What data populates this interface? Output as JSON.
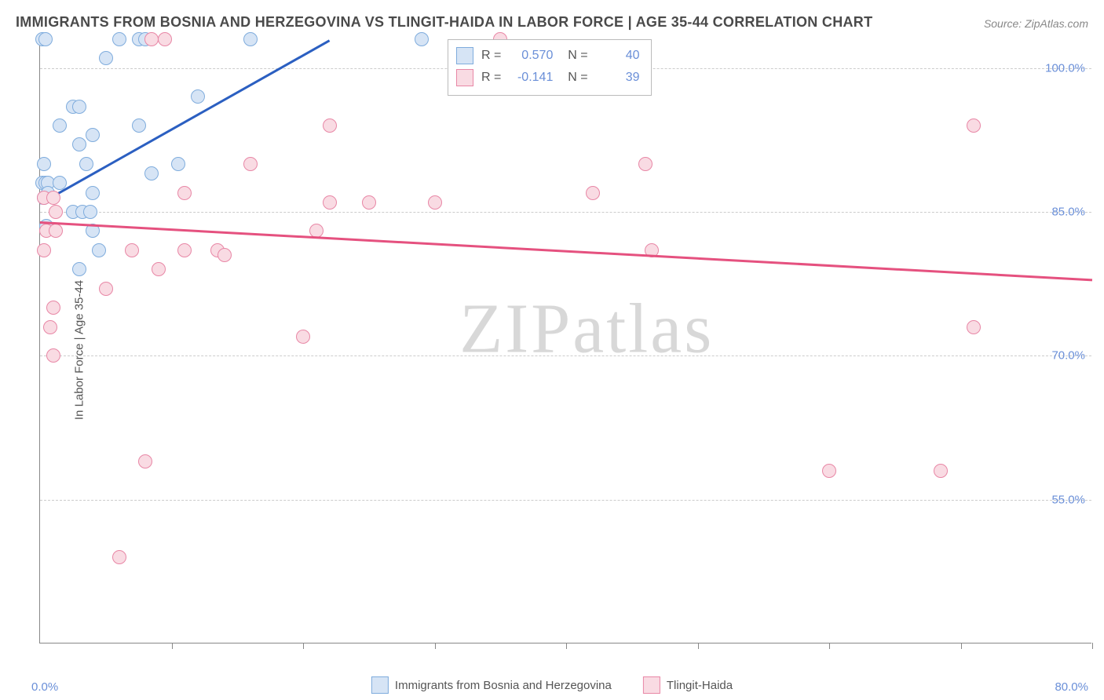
{
  "title": "IMMIGRANTS FROM BOSNIA AND HERZEGOVINA VS TLINGIT-HAIDA IN LABOR FORCE | AGE 35-44 CORRELATION CHART",
  "source": "Source: ZipAtlas.com",
  "watermark_a": "ZIP",
  "watermark_b": "atlas",
  "y_axis_title": "In Labor Force | Age 35-44",
  "x_min_label": "0.0%",
  "x_max_label": "80.0%",
  "chart": {
    "type": "scatter",
    "xlim": [
      0,
      80
    ],
    "ylim": [
      40,
      103
    ],
    "y_ticks": [
      55.0,
      70.0,
      85.0,
      100.0
    ],
    "y_tick_labels": [
      "55.0%",
      "70.0%",
      "85.0%",
      "100.0%"
    ],
    "x_ticks": [
      0,
      10,
      20,
      30,
      40,
      50,
      60,
      70,
      80
    ],
    "grid_color": "#cccccc",
    "background_color": "#ffffff",
    "label_color": "#6a8fd8",
    "marker_radius": 9,
    "series": [
      {
        "name": "Immigrants from Bosnia and Herzegovina",
        "fill": "#d6e4f5",
        "stroke": "#7facdd",
        "trend_color": "#2b5fc1",
        "R": "0.570",
        "N": "40",
        "trend": {
          "x1": 0,
          "y1": 86,
          "x2": 22,
          "y2": 103
        },
        "points": [
          [
            0.2,
            103
          ],
          [
            0.4,
            103
          ],
          [
            6,
            103
          ],
          [
            7.5,
            103
          ],
          [
            8,
            103
          ],
          [
            16,
            103
          ],
          [
            29,
            103
          ],
          [
            5,
            101
          ],
          [
            2.5,
            96
          ],
          [
            3,
            96
          ],
          [
            12,
            97
          ],
          [
            1.5,
            94
          ],
          [
            7.5,
            94
          ],
          [
            3,
            92
          ],
          [
            4,
            93
          ],
          [
            0.3,
            90
          ],
          [
            3.5,
            90
          ],
          [
            10.5,
            90
          ],
          [
            0.2,
            88
          ],
          [
            0.4,
            88
          ],
          [
            0.6,
            88
          ],
          [
            1.5,
            88
          ],
          [
            8.5,
            89
          ],
          [
            0.3,
            86.5
          ],
          [
            0.6,
            87
          ],
          [
            4,
            87
          ],
          [
            2.5,
            85
          ],
          [
            3.2,
            85
          ],
          [
            3.8,
            85
          ],
          [
            0.5,
            83.5
          ],
          [
            4,
            83
          ],
          [
            4.5,
            81
          ],
          [
            3,
            79
          ]
        ]
      },
      {
        "name": "Tlingit-Haida",
        "fill": "#f9dbe3",
        "stroke": "#e887a6",
        "trend_color": "#e5517f",
        "R": "-0.141",
        "N": "39",
        "trend": {
          "x1": 0,
          "y1": 84,
          "x2": 80,
          "y2": 78
        },
        "points": [
          [
            8.5,
            103
          ],
          [
            9.5,
            103
          ],
          [
            35,
            103
          ],
          [
            22,
            94
          ],
          [
            71,
            94
          ],
          [
            16,
            90
          ],
          [
            46,
            90
          ],
          [
            11,
            87
          ],
          [
            42,
            87
          ],
          [
            0.3,
            86.5
          ],
          [
            1,
            86.5
          ],
          [
            22,
            86
          ],
          [
            25,
            86
          ],
          [
            30,
            86
          ],
          [
            1.2,
            85
          ],
          [
            0.5,
            83
          ],
          [
            1.2,
            83
          ],
          [
            21,
            83
          ],
          [
            0.3,
            81
          ],
          [
            7,
            81
          ],
          [
            11,
            81
          ],
          [
            13.5,
            81
          ],
          [
            46.5,
            81
          ],
          [
            14,
            80.5
          ],
          [
            9,
            79
          ],
          [
            5,
            77
          ],
          [
            1,
            75
          ],
          [
            0.8,
            73
          ],
          [
            20,
            72
          ],
          [
            71,
            73
          ],
          [
            1,
            70
          ],
          [
            8,
            59
          ],
          [
            60,
            58
          ],
          [
            68.5,
            58
          ],
          [
            6,
            49
          ]
        ]
      }
    ]
  },
  "legend": {
    "series1": "Immigrants from Bosnia and Herzegovina",
    "series2": "Tlingit-Haida"
  }
}
